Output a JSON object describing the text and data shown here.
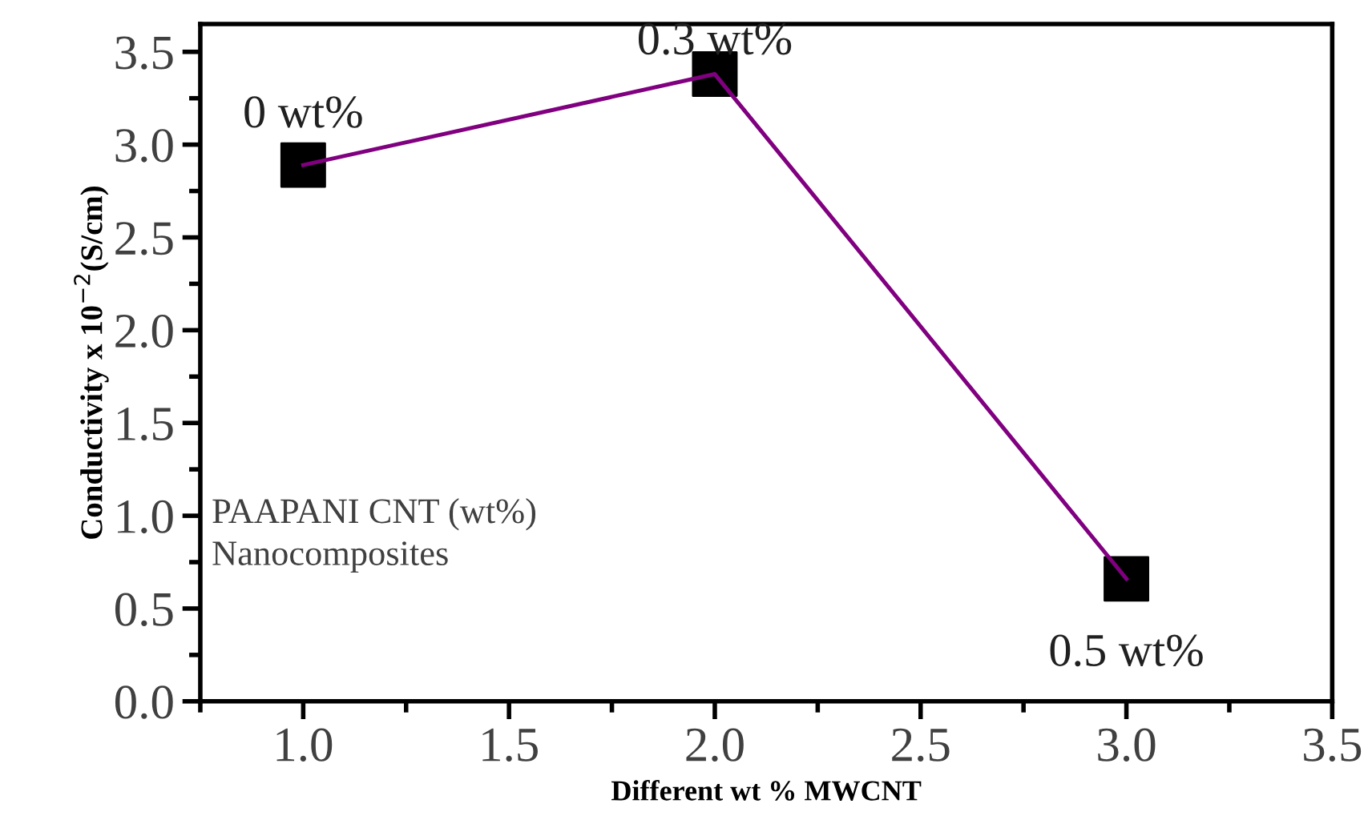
{
  "chart_data": {
    "type": "line",
    "xlabel": "Different wt % MWCNT",
    "ylabel": "Conductivity x 10$^{−2}$(S/cm)",
    "x": [
      1.0,
      2.0,
      3.0
    ],
    "series": [
      {
        "color": "#800080",
        "values": [
          2.89,
          3.38,
          0.66
        ],
        "marker": "none",
        "line_style": "solid"
      },
      {
        "type": "scatter",
        "color": "#000000",
        "values": [
          2.89,
          3.38,
          0.66
        ],
        "marker": "square"
      }
    ],
    "xlim": [
      0.75,
      3.5
    ],
    "xticks": [
      {
        "value": 1,
        "label": "1.0"
      },
      1.5,
      {
        "value": 2,
        "label": "2.0"
      },
      2.5,
      {
        "value": 3,
        "label": "3.0"
      },
      3.5
    ],
    "ylim": [
      0,
      3.65
    ],
    "yticks": [
      {
        "value": 0,
        "label": "0.0"
      },
      0.5,
      {
        "value": 1,
        "label": "1.0"
      },
      1.5,
      {
        "value": 2,
        "label": "2.0"
      },
      2.5,
      {
        "value": 3,
        "label": "3.0"
      },
      3.5
    ],
    "grid": false,
    "legend": false,
    "annotations": [
      {
        "text": "0 wt%",
        "x": 1.0,
        "y": 2.89
      },
      {
        "text": "0.3 wt%",
        "x": 2.0,
        "y": 3.38
      },
      {
        "text": "0.5 wt%",
        "x": 3.0,
        "y": 0.66
      },
      "PAAPANI CNT (wt%)\nNanocomposites"
    ]
  }
}
